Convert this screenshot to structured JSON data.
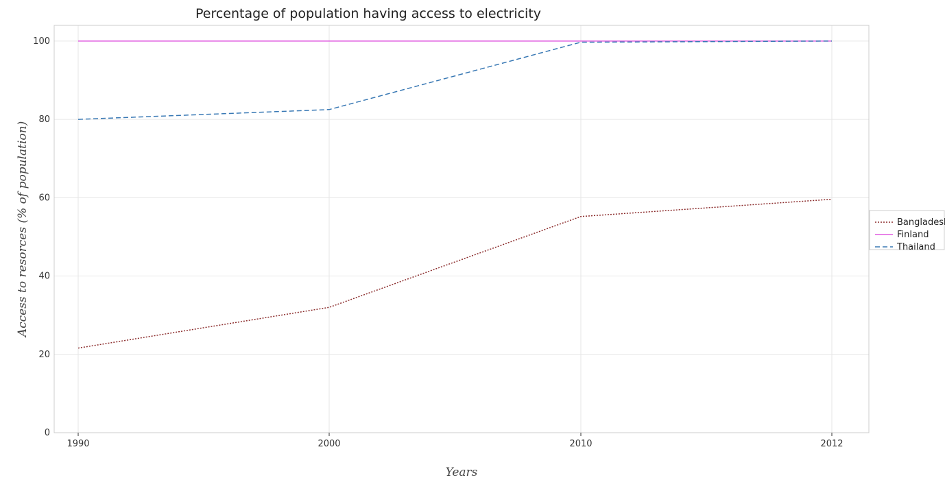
{
  "chart_data": {
    "type": "line",
    "title": "Percentage of population having access to electricity",
    "xlabel": "Years",
    "ylabel": "Access to resorces (% of population)",
    "x": [
      "1990",
      "2000",
      "2010",
      "2012"
    ],
    "yticks": [
      "0",
      "20",
      "40",
      "60",
      "80",
      "100"
    ],
    "ylim": [
      0,
      104
    ],
    "grid": true,
    "legend_placement": "right",
    "series": [
      {
        "name": "Bangladesh",
        "values": [
          21.6,
          32.0,
          55.2,
          59.6
        ],
        "color": "#8b2c2c",
        "dash": "2,2"
      },
      {
        "name": "Finland",
        "values": [
          100,
          100,
          100,
          100
        ],
        "color": "#e05ce0",
        "dash": ""
      },
      {
        "name": "Thailand",
        "values": [
          80.0,
          82.5,
          99.7,
          100
        ],
        "color": "#3878b4",
        "dash": "7,4"
      }
    ]
  }
}
